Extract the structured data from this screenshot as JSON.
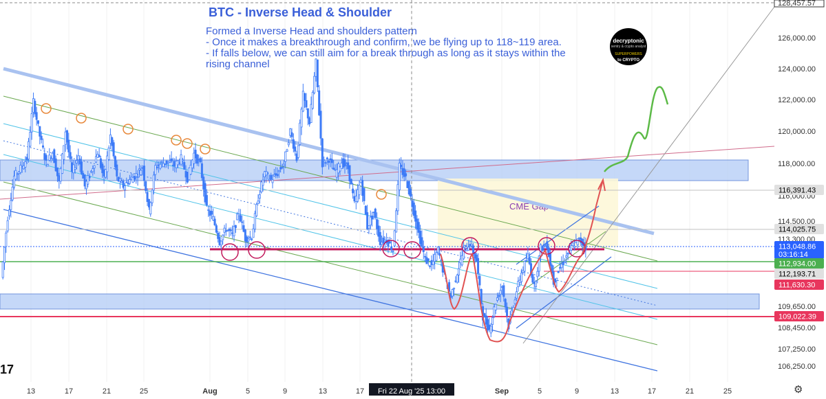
{
  "title": "BTC - Inverse Head & Shoulder",
  "note_lines": [
    "Formed a Inverse Head and shoulders pattern",
    "- Once it makes a breakthrough and confirm, we be flying up to 118~119 area.",
    "- If falls below, we can still aim for a break through as long as it stays within the",
    "rising channel"
  ],
  "logo": {
    "line1": "decryptonic",
    "line2": "sentry & crypto analyst",
    "line3": "SUPERPOWERS",
    "line4": "to CRYPTO"
  },
  "chart_data": {
    "type": "candlestick",
    "title": "BTC - Inverse Head & Shoulder",
    "annotation": "CME Gap",
    "x_tick_labels": [
      "13",
      "17",
      "21",
      "25",
      "Aug",
      "5",
      "9",
      "13",
      "17",
      "Fri 22 Aug '25  13:00",
      "Sep",
      "5",
      "9",
      "13",
      "17",
      "21",
      "25"
    ],
    "y_tick_labels": [
      "126,000.00",
      "124,000.00",
      "122,000.00",
      "120,000.00",
      "118,000.00",
      "116,000.00",
      "114,500.00",
      "109,650.00",
      "108,450.00",
      "107,250.00",
      "106,250.00"
    ],
    "y_labels_top_partial": [
      "128,457.57",
      "113,300.00"
    ],
    "price_tags": [
      {
        "value": "116,391.43",
        "color": "#e0e0e0",
        "text_color": "#000000"
      },
      {
        "value": "114,025.75",
        "color": "#e0e0e0",
        "text_color": "#000000"
      },
      {
        "value": "113,048.86",
        "sub": "03:16:14",
        "color": "#2962ff",
        "text_color": "#ffffff"
      },
      {
        "value": "112,934.00",
        "color": "#4caf50",
        "text_color": "#ffffff"
      },
      {
        "value": "112,193.71",
        "color": "#e0e0e0",
        "text_color": "#000000"
      },
      {
        "value": "111,630.30",
        "color": "#e8365d",
        "text_color": "#ffffff"
      },
      {
        "value": "109,022.39",
        "color": "#e8365d",
        "text_color": "#ffffff"
      }
    ],
    "zones": [
      {
        "name": "supply-zone",
        "from": 117000,
        "to": 118200
      },
      {
        "name": "demand-zone",
        "from": 109650,
        "to": 110600
      }
    ],
    "neckline": 113000,
    "colors": {
      "up": "#3d7bf7",
      "down": "#3d7bf7",
      "pattern": "#e05252",
      "projection": "#5cba47",
      "zone": "#bcd2f7"
    },
    "price_path": [
      111000,
      114700,
      117200,
      117700,
      118300,
      121800,
      119700,
      118000,
      118700,
      116800,
      120000,
      117400,
      118500,
      116600,
      117500,
      118700,
      117000,
      119700,
      117100,
      116600,
      117000,
      117300,
      117800,
      115100,
      117800,
      118000,
      118100,
      117900,
      118300,
      117100,
      118600,
      117900,
      115200,
      114600,
      113200,
      114000,
      113600,
      115000,
      113400,
      113500,
      115900,
      117400,
      117000,
      117400,
      118000,
      120000,
      118300,
      122200,
      120500,
      124200,
      118000,
      118300,
      117400,
      118100,
      117700,
      115500,
      117000,
      114100,
      115000,
      113200,
      113300,
      112700,
      117800,
      117100,
      115500,
      113700,
      112100,
      111700,
      112700,
      111100,
      109800,
      111300,
      112700,
      113100,
      112000,
      108600,
      107800,
      109500,
      110500,
      108000,
      109800,
      111300,
      112300,
      110400,
      112800,
      113000,
      110700,
      111600,
      112300,
      113000,
      113300,
      112900
    ]
  }
}
